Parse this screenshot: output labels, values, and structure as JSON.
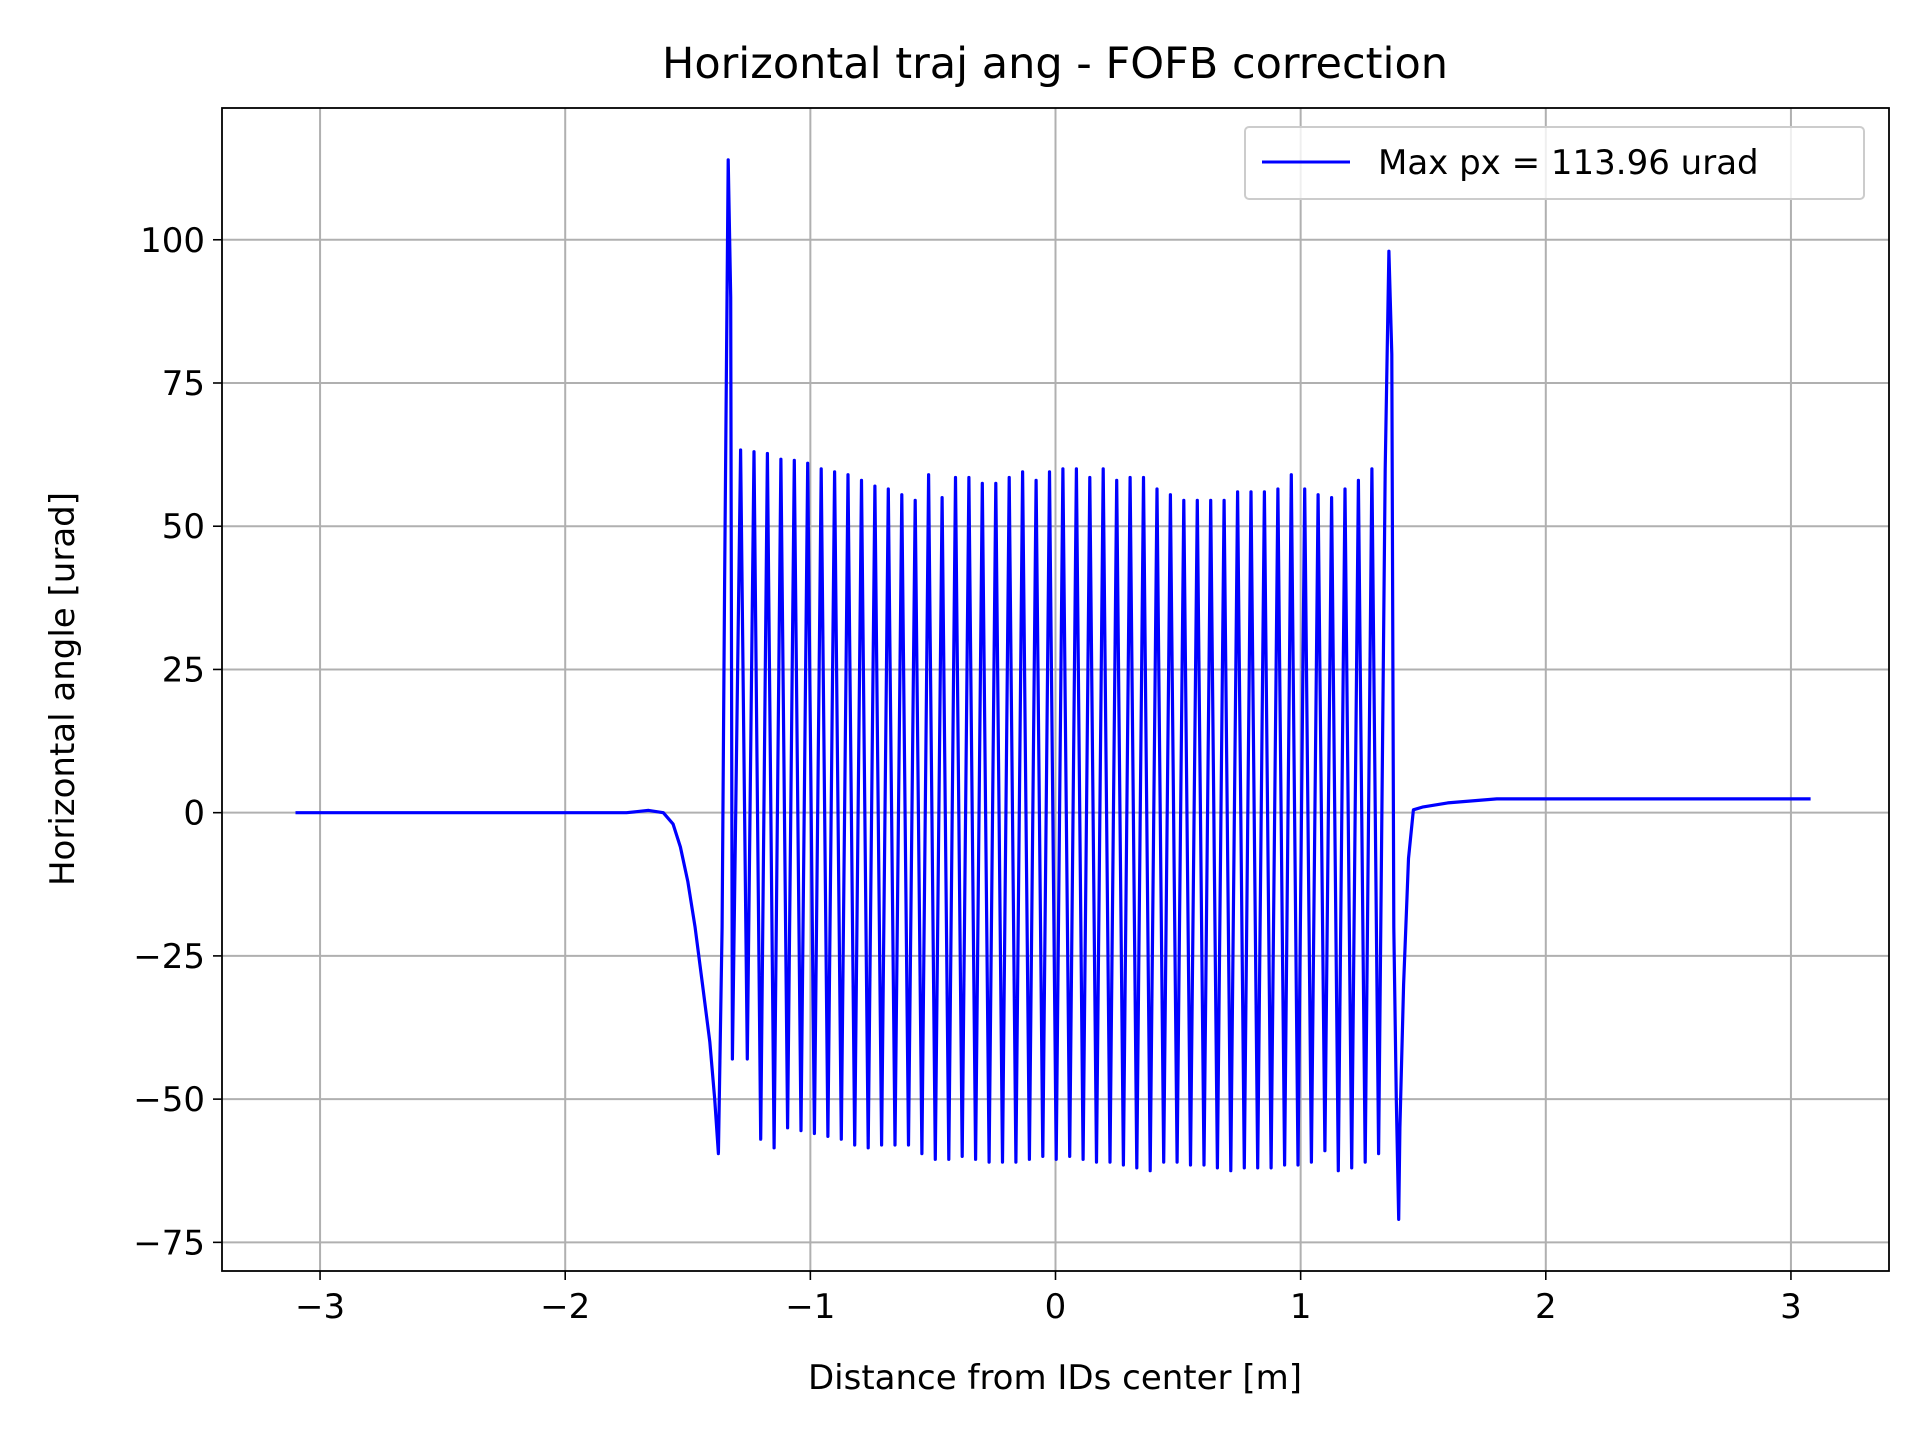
{
  "chart_data": {
    "type": "line",
    "title": "Horizontal traj ang - FOFB correction",
    "xlabel": "Distance from IDs center [m]",
    "ylabel": "Horizontal angle [urad]",
    "xlim": [
      -3.4,
      3.4
    ],
    "ylim": [
      -80,
      123
    ],
    "xticks": [
      -3,
      -2,
      -1,
      0,
      1,
      2,
      3
    ],
    "xtick_labels": [
      "−3",
      "−2",
      "−1",
      "0",
      "1",
      "2",
      "3"
    ],
    "yticks": [
      -75,
      -50,
      -25,
      0,
      25,
      50,
      75,
      100
    ],
    "ytick_labels": [
      "−75",
      "−50",
      "−25",
      "0",
      "25",
      "50",
      "75",
      "100"
    ],
    "grid": true,
    "legend_position": "top-right",
    "series": [
      {
        "name": "Max px = 113.96 urad",
        "color": "#0000ff",
        "x_range": [
          -3.1,
          3.08
        ],
        "flat_left_value": 0,
        "flat_right_value": 2.4,
        "oscillation_x_range": [
          -1.3,
          1.33
        ],
        "oscillation_period": 0.051,
        "entry_peak": {
          "x": -1.335,
          "y": 113.96
        },
        "entry_dip": {
          "x": -1.375,
          "y": -59.5
        },
        "exit_peak": {
          "x": 1.36,
          "y": 98
        },
        "exit_dip": {
          "x": 1.4,
          "y": -71
        },
        "peak_max": [
          63.3,
          63,
          62.7,
          61.7,
          61.5,
          61,
          60,
          59.5,
          59,
          58,
          57,
          56.5,
          55.5,
          54.5,
          59,
          55,
          58.5,
          58.5,
          57.5,
          57.5,
          58.5,
          59.5,
          58,
          59.5,
          60,
          60,
          58.5,
          60,
          58,
          58.5,
          58.5,
          56.5,
          55.5,
          54.5,
          54.5,
          54.5,
          54.5,
          56,
          56,
          56,
          56.5,
          59,
          56.5,
          55.5,
          55,
          56.5,
          58,
          60
        ],
        "trough_min": [
          -43,
          -57,
          -58.5,
          -55,
          -55.5,
          -56,
          -56.5,
          -57,
          -58,
          -58.5,
          -58,
          -58,
          -58,
          -59.5,
          -60.5,
          -60.5,
          -60,
          -60.5,
          -61,
          -61,
          -61,
          -60.5,
          -60,
          -60.5,
          -60,
          -60.5,
          -61,
          -61,
          -61.5,
          -62,
          -62.5,
          -61,
          -61,
          -61.5,
          -61.5,
          -62,
          -62.5,
          -62,
          -62,
          -62,
          -61.5,
          -61.5,
          -61,
          -59,
          -62.5,
          -62,
          -61,
          -59.5
        ]
      }
    ]
  }
}
